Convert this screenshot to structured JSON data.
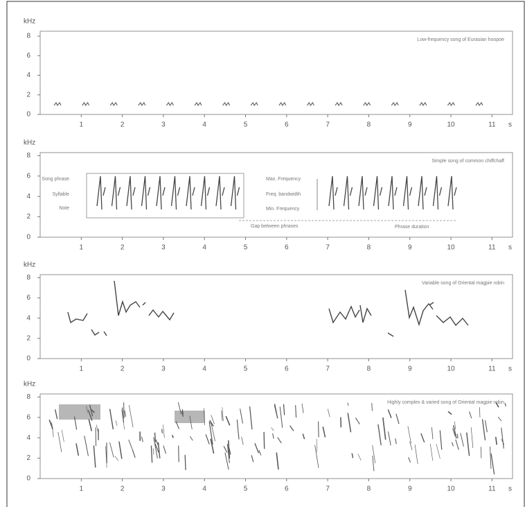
{
  "chart_data": [
    {
      "type": "spectrogram",
      "title": "Low-frequency song of Eurasian hoopoe",
      "y_label": "kHz",
      "x_unit": "s",
      "xlim": [
        0,
        11.5
      ],
      "ylim": [
        0,
        8.5
      ],
      "xticks": [
        1,
        2,
        3,
        4,
        5,
        6,
        7,
        8,
        9,
        10,
        11
      ],
      "yticks": [
        0,
        2,
        4,
        6,
        8
      ]
    },
    {
      "type": "spectrogram",
      "title": "Simple song of common chiffchaff",
      "y_label": "kHz",
      "x_unit": "s",
      "xlim": [
        0,
        11.5
      ],
      "ylim": [
        0,
        8.3
      ],
      "xticks": [
        1,
        2,
        3,
        4,
        5,
        6,
        7,
        8,
        9,
        10,
        11
      ],
      "yticks": [
        0,
        2,
        4,
        6,
        8
      ],
      "annotations": [
        "Song phrase",
        "Syllable",
        "Note",
        "Max. Frequency",
        "Freq. bandwidth",
        "Min. Frequency",
        "Gap between phrases",
        "Phrase duration"
      ]
    },
    {
      "type": "spectrogram",
      "title": "Variable song of Oriental magpie robin",
      "y_label": "kHz",
      "x_unit": "s",
      "xlim": [
        0,
        11.5
      ],
      "ylim": [
        0,
        8.3
      ],
      "xticks": [
        1,
        2,
        3,
        4,
        5,
        6,
        7,
        8,
        9,
        10,
        11
      ],
      "yticks": [
        0,
        2,
        4,
        6,
        8
      ]
    },
    {
      "type": "spectrogram",
      "title": "Highly complex & varied song of Oriental magpie robin",
      "y_label": "kHz",
      "x_unit": "s",
      "xlim": [
        0,
        11.5
      ],
      "ylim": [
        0,
        8.3
      ],
      "xticks": [
        1,
        2,
        3,
        4,
        5,
        6,
        7,
        8,
        9,
        10,
        11
      ],
      "yticks": [
        0,
        2,
        4,
        6,
        8
      ]
    }
  ]
}
